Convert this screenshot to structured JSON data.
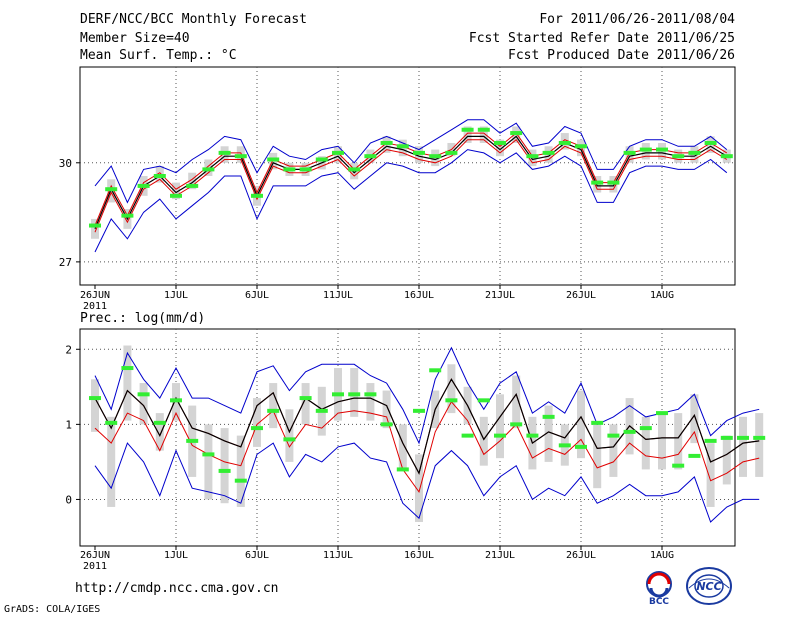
{
  "header": {
    "left": [
      "DERF/NCC/BCC Monthly Forecast",
      "Member Size=40",
      "Mean Surf. Temp.: °C"
    ],
    "right": [
      "For 2011/06/26-2011/08/04",
      "Fcst Started Refer Date 2011/06/25",
      "Fcst Produced Date 2011/06/26"
    ]
  },
  "footer": {
    "url": "http://cmdp.ncc.cma.gov.cn",
    "credit": "GrADS: COLA/IGES",
    "logo_left_label": "BCC",
    "logo_right_label": "NCC"
  },
  "colors": {
    "mean": "#000000",
    "red_line": "#e00000",
    "blue_line": "#0000cc",
    "box": "#d4d4d4",
    "marker": "#33ee33",
    "grid": "#555555"
  },
  "chart_data": [
    {
      "type": "line",
      "title": "Mean Surf. Temp.: °C",
      "ylabel": "°C",
      "ylim": [
        26.3,
        32.9
      ],
      "yticks": [
        27,
        30
      ],
      "xticks": [
        {
          "day": 0,
          "label": "26JUN"
        },
        {
          "day": 5,
          "label": "1JUL"
        },
        {
          "day": 10,
          "label": "6JUL"
        },
        {
          "day": 15,
          "label": "11JUL"
        },
        {
          "day": 20,
          "label": "16JUL"
        },
        {
          "day": 25,
          "label": "21JUL"
        },
        {
          "day": 30,
          "label": "26JUL"
        },
        {
          "day": 35,
          "label": "1AUG"
        }
      ],
      "xyear": "2011",
      "series": [
        {
          "name": "mean",
          "values": [
            28.0,
            29.2,
            28.3,
            29.3,
            29.6,
            29.1,
            29.4,
            29.8,
            30.2,
            30.2,
            29.0,
            30.0,
            29.8,
            29.8,
            30.0,
            30.2,
            29.7,
            30.1,
            30.5,
            30.4,
            30.2,
            30.1,
            30.3,
            30.8,
            30.8,
            30.4,
            30.8,
            30.1,
            30.2,
            30.6,
            30.4,
            29.3,
            29.3,
            30.2,
            30.3,
            30.3,
            30.2,
            30.2,
            30.5,
            30.2
          ]
        },
        {
          "name": "red",
          "values": [
            27.9,
            29.1,
            28.2,
            29.2,
            29.5,
            29.0,
            29.3,
            29.7,
            30.1,
            30.1,
            28.9,
            29.9,
            29.7,
            29.7,
            29.9,
            30.1,
            29.6,
            30.0,
            30.4,
            30.3,
            30.1,
            30.0,
            30.2,
            30.7,
            30.7,
            30.3,
            30.7,
            30.0,
            30.1,
            30.5,
            30.3,
            29.2,
            29.2,
            30.1,
            30.2,
            30.2,
            30.1,
            30.1,
            30.4,
            30.1
          ]
        },
        {
          "name": "red_high",
          "values": [
            28.1,
            29.3,
            28.4,
            29.4,
            29.7,
            29.2,
            29.5,
            29.9,
            30.3,
            30.3,
            29.1,
            30.1,
            29.9,
            29.9,
            30.1,
            30.3,
            29.8,
            30.2,
            30.6,
            30.5,
            30.3,
            30.2,
            30.4,
            30.9,
            30.9,
            30.5,
            30.9,
            30.2,
            30.3,
            30.7,
            30.5,
            29.4,
            29.4,
            30.3,
            30.4,
            30.4,
            30.3,
            30.3,
            30.6,
            30.3
          ]
        },
        {
          "name": "blue_max",
          "values": [
            29.3,
            29.9,
            28.8,
            29.8,
            29.9,
            29.7,
            30.1,
            30.4,
            30.8,
            30.7,
            29.7,
            30.5,
            30.2,
            30.1,
            30.4,
            30.5,
            30.0,
            30.6,
            30.8,
            30.6,
            30.4,
            30.7,
            31.0,
            31.3,
            31.3,
            30.9,
            31.2,
            30.5,
            30.6,
            31.1,
            30.9,
            29.8,
            29.8,
            30.5,
            30.7,
            30.7,
            30.5,
            30.5,
            30.8,
            30.4
          ]
        },
        {
          "name": "blue_min",
          "values": [
            27.3,
            28.3,
            27.7,
            28.5,
            28.9,
            28.3,
            28.7,
            29.1,
            29.6,
            29.6,
            28.3,
            29.3,
            29.3,
            29.3,
            29.6,
            29.7,
            29.2,
            29.6,
            30.0,
            29.9,
            29.7,
            29.7,
            30.0,
            30.4,
            30.3,
            30.0,
            30.3,
            29.8,
            29.9,
            30.2,
            29.9,
            28.8,
            28.8,
            29.7,
            29.9,
            29.9,
            29.8,
            29.8,
            30.1,
            29.7
          ]
        },
        {
          "name": "box_low",
          "values": [
            27.7,
            28.8,
            28.0,
            29.0,
            29.4,
            28.9,
            29.2,
            29.6,
            30.0,
            30.0,
            28.7,
            29.8,
            29.6,
            29.6,
            29.8,
            30.0,
            29.5,
            30.0,
            30.3,
            30.2,
            30.0,
            29.9,
            30.2,
            30.6,
            30.6,
            30.2,
            30.6,
            29.9,
            30.0,
            30.4,
            30.2,
            29.1,
            29.1,
            30.0,
            30.1,
            30.1,
            30.0,
            30.0,
            30.3,
            30.0
          ]
        },
        {
          "name": "box_high",
          "values": [
            28.3,
            29.5,
            28.6,
            29.6,
            29.9,
            29.4,
            29.7,
            30.1,
            30.5,
            30.5,
            29.3,
            30.3,
            30.0,
            30.0,
            30.2,
            30.5,
            30.0,
            30.4,
            30.8,
            30.7,
            30.5,
            30.4,
            30.6,
            31.1,
            31.1,
            30.7,
            31.1,
            30.4,
            30.5,
            30.9,
            30.7,
            29.6,
            29.6,
            30.5,
            30.6,
            30.6,
            30.4,
            30.5,
            30.8,
            30.4
          ]
        },
        {
          "name": "marker",
          "values": [
            28.1,
            29.2,
            28.4,
            29.3,
            29.6,
            29.0,
            29.3,
            29.8,
            30.3,
            30.2,
            29.0,
            30.1,
            29.8,
            29.8,
            30.1,
            30.3,
            29.8,
            30.2,
            30.6,
            30.5,
            30.3,
            30.2,
            30.3,
            31.0,
            31.0,
            30.6,
            30.9,
            30.2,
            30.3,
            30.6,
            30.5,
            29.4,
            29.4,
            30.3,
            30.4,
            30.4,
            30.2,
            30.3,
            30.6,
            30.2
          ]
        }
      ]
    },
    {
      "type": "line",
      "title": "Prec.: log(mm/d)",
      "ylabel": "log(mm/d)",
      "ylim": [
        -0.62,
        2.27
      ],
      "yticks": [
        0,
        1,
        2
      ],
      "xticks": [
        {
          "day": 0,
          "label": "26JUN"
        },
        {
          "day": 5,
          "label": "1JUL"
        },
        {
          "day": 10,
          "label": "6JUL"
        },
        {
          "day": 15,
          "label": "11JUL"
        },
        {
          "day": 20,
          "label": "16JUL"
        },
        {
          "day": 25,
          "label": "21JUL"
        },
        {
          "day": 30,
          "label": "26JUL"
        },
        {
          "day": 35,
          "label": "1AUG"
        }
      ],
      "xyear": "2011",
      "series": [
        {
          "name": "mean",
          "values": [
            1.35,
            0.95,
            1.45,
            1.25,
            0.85,
            1.35,
            0.95,
            0.88,
            0.78,
            0.7,
            1.25,
            1.42,
            0.9,
            1.35,
            1.2,
            1.3,
            1.35,
            1.35,
            1.25,
            0.75,
            0.35,
            1.2,
            1.6,
            1.25,
            0.8,
            1.1,
            1.4,
            0.75,
            0.9,
            0.82,
            1.1,
            0.68,
            0.7,
            0.98,
            0.8,
            0.82,
            0.82,
            1.12,
            0.5,
            0.6,
            0.75,
            0.78
          ]
        },
        {
          "name": "red",
          "values": [
            0.95,
            0.75,
            1.15,
            1.05,
            0.65,
            1.15,
            0.72,
            0.6,
            0.5,
            0.45,
            1.0,
            1.18,
            0.7,
            1.0,
            0.95,
            1.15,
            1.18,
            1.15,
            1.1,
            0.4,
            0.1,
            0.9,
            1.3,
            1.05,
            0.6,
            0.78,
            1.0,
            0.55,
            0.68,
            0.6,
            0.8,
            0.42,
            0.5,
            0.75,
            0.58,
            0.55,
            0.6,
            0.9,
            0.25,
            0.35,
            0.5,
            0.55
          ]
        },
        {
          "name": "red_high",
          "values": [
            1.35,
            0.95,
            1.45,
            1.25,
            0.85,
            1.35,
            0.95,
            0.88,
            0.78,
            0.7,
            1.25,
            1.42,
            0.9,
            1.35,
            1.2,
            1.3,
            1.35,
            1.35,
            1.25,
            0.75,
            0.35,
            1.2,
            1.6,
            1.25,
            0.8,
            1.1,
            1.4,
            0.75,
            0.9,
            0.82,
            1.1,
            0.68,
            0.7,
            0.98,
            0.8,
            0.82,
            0.82,
            1.12,
            0.5,
            0.6,
            0.75,
            0.78
          ]
        },
        {
          "name": "blue_max",
          "values": [
            1.65,
            1.2,
            1.95,
            1.6,
            1.35,
            1.75,
            1.35,
            1.35,
            1.25,
            1.15,
            1.7,
            1.78,
            1.45,
            1.7,
            1.8,
            1.8,
            1.8,
            1.65,
            1.55,
            1.2,
            0.75,
            1.6,
            2.02,
            1.55,
            1.2,
            1.55,
            1.7,
            1.15,
            1.3,
            1.15,
            1.55,
            1.0,
            1.1,
            1.25,
            1.1,
            1.15,
            1.2,
            1.4,
            0.85,
            1.05,
            1.15,
            1.2
          ]
        },
        {
          "name": "blue_min",
          "values": [
            0.45,
            0.15,
            0.75,
            0.5,
            0.05,
            0.65,
            0.15,
            0.1,
            0.05,
            -0.05,
            0.6,
            0.75,
            0.3,
            0.6,
            0.5,
            0.7,
            0.75,
            0.55,
            0.5,
            -0.05,
            -0.25,
            0.45,
            0.65,
            0.45,
            0.05,
            0.3,
            0.45,
            0.0,
            0.15,
            0.05,
            0.3,
            -0.05,
            0.05,
            0.2,
            0.05,
            0.05,
            0.1,
            0.3,
            -0.3,
            -0.1,
            0.0,
            0.0
          ]
        },
        {
          "name": "box_low",
          "values": [
            0.9,
            -0.1,
            1.05,
            1.0,
            0.65,
            1.05,
            0.3,
            0.0,
            -0.05,
            -0.1,
            0.7,
            0.95,
            0.5,
            1.0,
            0.85,
            1.05,
            1.1,
            1.05,
            0.95,
            0.4,
            -0.3,
            0.95,
            1.15,
            1.0,
            0.45,
            0.55,
            0.95,
            0.4,
            0.5,
            0.45,
            0.55,
            0.15,
            0.3,
            0.6,
            0.4,
            0.4,
            0.4,
            0.75,
            -0.1,
            0.2,
            0.3,
            0.3
          ]
        },
        {
          "name": "box_high",
          "values": [
            1.6,
            1.1,
            2.05,
            1.55,
            1.15,
            1.55,
            1.25,
            1.0,
            0.95,
            0.85,
            1.35,
            1.55,
            1.2,
            1.55,
            1.5,
            1.75,
            1.75,
            1.55,
            1.45,
            1.0,
            0.6,
            1.45,
            1.8,
            1.5,
            1.1,
            1.4,
            1.65,
            1.1,
            1.25,
            1.0,
            1.45,
            1.0,
            1.0,
            1.35,
            1.1,
            1.15,
            1.15,
            1.4,
            0.75,
            0.85,
            1.1,
            1.15
          ]
        },
        {
          "name": "marker",
          "values": [
            1.35,
            1.02,
            1.75,
            1.4,
            1.02,
            1.32,
            0.78,
            0.6,
            0.38,
            0.25,
            0.95,
            1.18,
            0.8,
            1.35,
            1.18,
            1.4,
            1.4,
            1.4,
            1.0,
            0.4,
            1.18,
            1.72,
            1.32,
            0.85,
            1.32,
            0.85,
            1.0,
            0.85,
            1.1,
            0.72,
            0.7,
            1.02,
            0.85,
            0.9,
            0.95,
            1.15,
            0.45,
            0.58,
            0.78,
            0.82,
            0.82,
            0.82
          ]
        }
      ]
    }
  ]
}
